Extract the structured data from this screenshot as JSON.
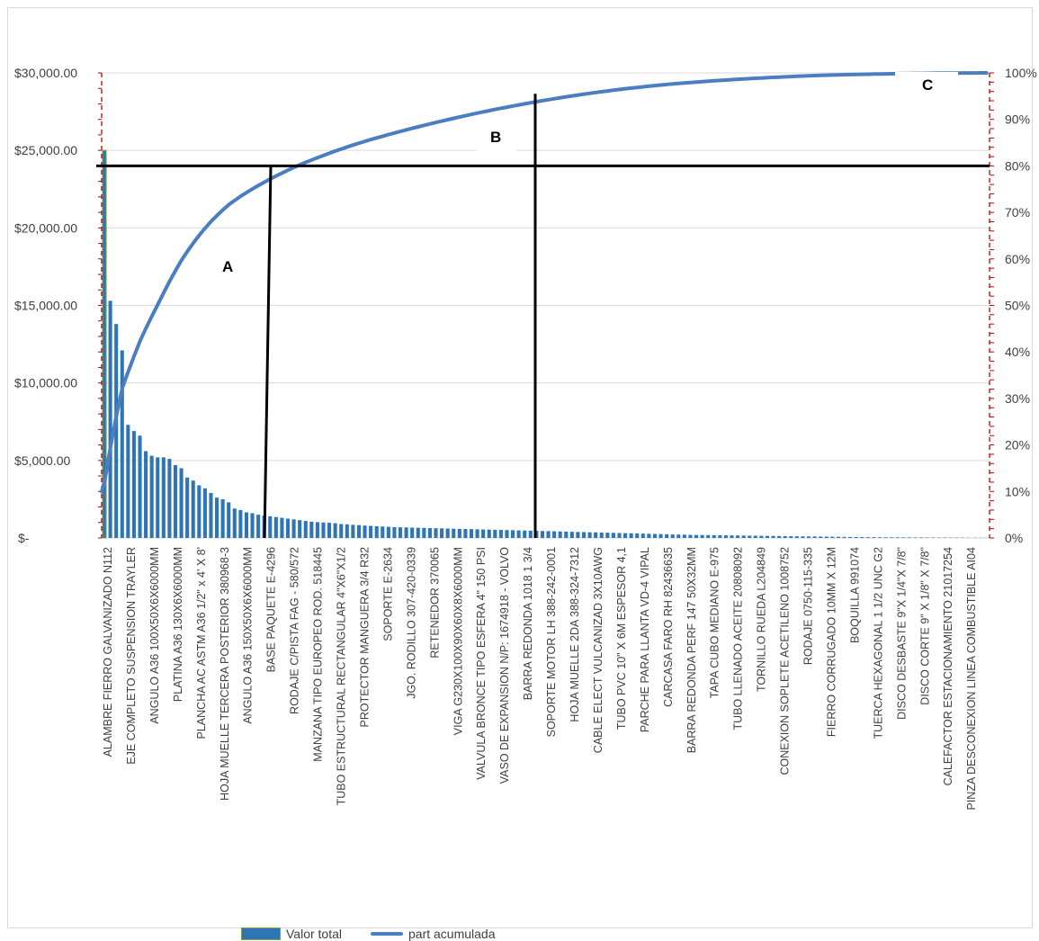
{
  "chart_data": {
    "type": "bar+line",
    "legend": [
      "Valor total",
      "part acumulada"
    ],
    "left_axis": {
      "ticks": [
        "$-",
        "$5,000.00",
        "$10,000.00",
        "$15,000.00",
        "$20,000.00",
        "$25,000.00",
        "$30,000.00"
      ],
      "ylim": [
        0,
        30000
      ]
    },
    "right_axis": {
      "ticks": [
        "0%",
        "10%",
        "20%",
        "30%",
        "40%",
        "50%",
        "60%",
        "70%",
        "80%",
        "90%",
        "100%"
      ],
      "ylim": [
        0,
        100
      ]
    },
    "category_labels": [
      "ALAMBRE FIERRO GALVANIZADO N112",
      "EJE COMPLETO SUSPENSION TRAYLER",
      "ANGULO A36 100X50X6X6000MM",
      "PLATINA A36 130X6X6000MM",
      "PLANCHA AC ASTM A36 1/2\" x 4' X 8'",
      "HOJA MUELLE TERCERA POSTERIOR 380968-3",
      "ANGULO A36 150X50X6X6000MM",
      "BASE PAQUETE E-4296",
      "RODAJE C/PISTA FAG - 580/572",
      "MANZANA  TIPO EUROPEO ROD. 518445",
      "TUBO ESTRUCTURAL RECTANGULAR 4\"X6\"X1/2",
      "PROTECTOR MANGUERA 3/4 R32",
      "SOPORTE E-2634",
      "JGO. RODILLO 307-420-0339",
      "RETENEDOR 370065",
      "VIGA G230X100X90X60X8X6000MM",
      "VALVULA BRONCE TIPO ESFERA 4\" 150 PSI",
      "VASO DE EXPANSION N/P: 1674918 - VOLVO",
      "BARRA REDONDA 1018 1 3/4",
      "SOPORTE MOTOR LH 388-242-0001",
      "HOJA MUELLE 2DA 388-324-7312",
      "CABLE ELECT VULCANIZAD 3X10AWG",
      "TUBO PVC 10\" X 6M ESPESOR 4,1",
      "PARCHE PARA LLANTA VD-4 VIPAL",
      "CARCASA FARO RH 82436635",
      "BARRA REDONDA PERF 147 50X32MM",
      "TAPA CUBO MEDIANO E-975",
      "TUBO LLENADO ACEITE 20808092",
      "TORNILLO RUEDA L204849",
      "CONEXION SOPLETE ACETILENO 1008752",
      "RODAJE 0750-115-335",
      "FIERRO CORRUGADO 10MM X 12M",
      "BOQUILLA 991074",
      "TUERCA HEXAGONAL 1 1/2 UNC G2",
      "DISCO DESBASTE 9\"X 1/4\"X 7/8\"",
      "DISCO CORTE 9\" X 1/8\" X 7/8\"",
      "CALEFACTOR ESTACIONAMIENTO 21017254",
      "PINZA DESCONEXION LINEA COMBUSTIBLE AI04"
    ],
    "series": [
      {
        "name": "Valor total",
        "values": [
          25000,
          15300,
          13800,
          12100,
          7300,
          6900,
          6600,
          5600,
          5300,
          5200,
          5200,
          5100,
          4700,
          4500,
          3900,
          3700,
          3400,
          3200,
          2900,
          2600,
          2500,
          2300,
          1900,
          1800,
          1650,
          1600,
          1500,
          1450,
          1400,
          1350,
          1300,
          1250,
          1200,
          1150,
          1100,
          1050,
          1020,
          1000,
          980,
          950,
          900,
          880,
          850,
          830,
          800,
          780,
          760,
          740,
          720,
          700,
          690,
          680,
          670,
          660,
          650,
          640,
          630,
          620,
          610,
          600,
          590,
          580,
          570,
          560,
          550,
          540,
          530,
          520,
          510,
          500,
          490,
          480,
          470,
          460,
          450,
          440,
          430,
          420,
          410,
          400,
          390,
          380,
          370,
          360,
          350,
          340,
          330,
          320,
          310,
          300,
          290,
          280,
          270,
          260,
          250,
          240,
          230,
          220,
          210,
          200,
          195,
          190,
          185,
          180,
          175,
          170,
          165,
          160,
          155,
          150,
          145,
          140,
          135,
          130,
          125,
          120,
          115,
          110,
          105,
          100,
          95,
          90,
          85,
          80,
          75,
          70,
          65,
          60,
          55,
          50,
          48,
          46,
          44,
          42,
          40,
          38,
          36,
          34,
          32,
          30,
          28,
          26,
          24,
          22,
          20,
          18,
          16,
          14,
          12,
          10
        ]
      },
      {
        "name": "part acumulada",
        "axis": "right",
        "shape": "cumulative share of total, 0-100%"
      }
    ],
    "annotations": [
      {
        "label": "A"
      },
      {
        "label": "B"
      },
      {
        "label": "C"
      }
    ]
  }
}
